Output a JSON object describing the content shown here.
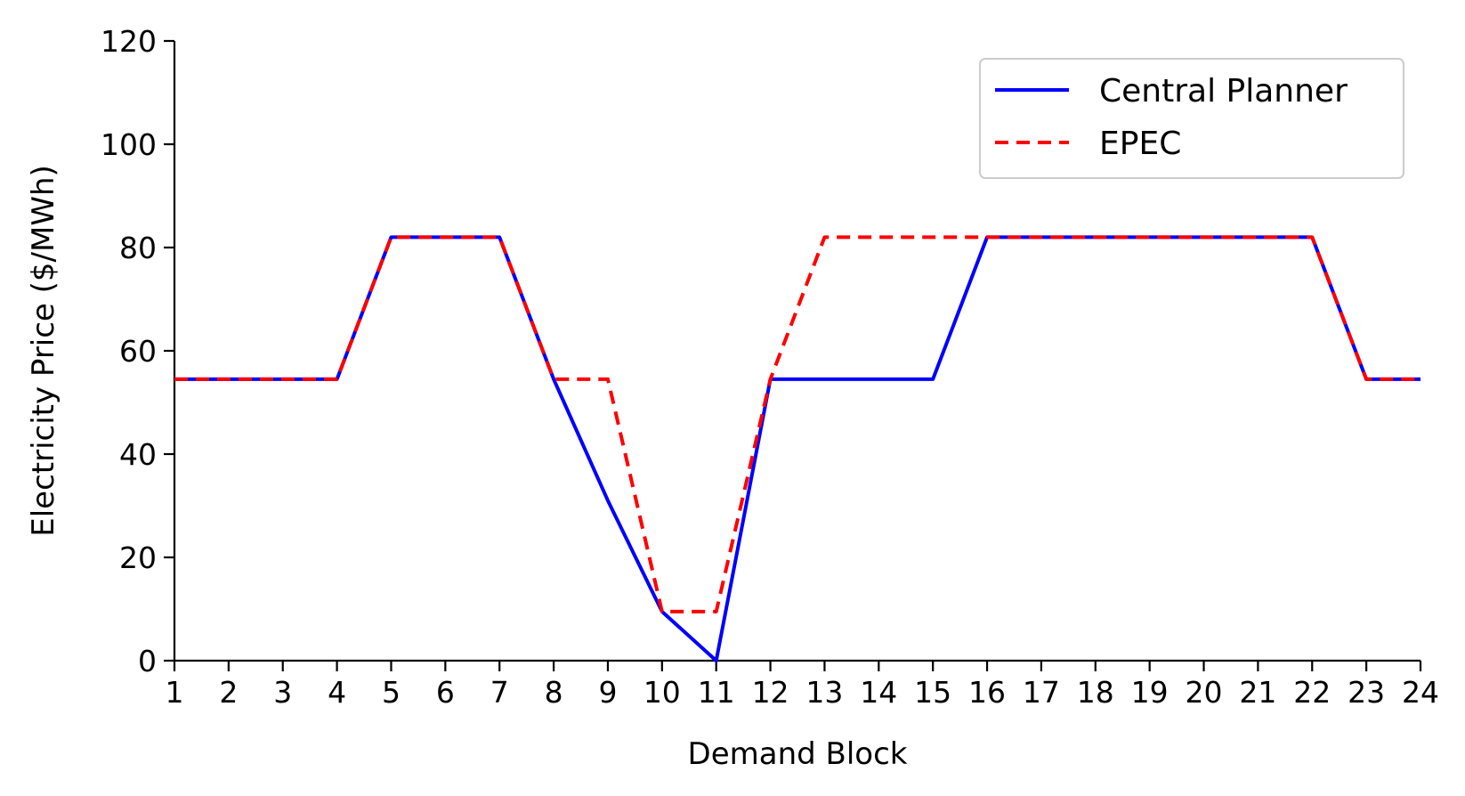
{
  "chart_data": {
    "type": "line",
    "xlabel": "Demand Block",
    "ylabel": "Electricity Price ($/MWh)",
    "x": [
      1,
      2,
      3,
      4,
      5,
      6,
      7,
      8,
      9,
      10,
      11,
      12,
      13,
      14,
      15,
      16,
      17,
      18,
      19,
      20,
      21,
      22,
      23,
      24
    ],
    "x_ticks": [
      "1",
      "2",
      "3",
      "4",
      "5",
      "6",
      "7",
      "8",
      "9",
      "10",
      "11",
      "12",
      "13",
      "14",
      "15",
      "16",
      "17",
      "18",
      "19",
      "20",
      "21",
      "22",
      "23",
      "24"
    ],
    "xlim": [
      1,
      24
    ],
    "ylim": [
      0,
      120
    ],
    "y_ticks": [
      "0",
      "20",
      "40",
      "60",
      "80",
      "100",
      "120"
    ],
    "grid": false,
    "legend_position": "top-right",
    "series": [
      {
        "name": "Central Planner",
        "color": "#0000ff",
        "style": "solid",
        "values": [
          54.5,
          54.5,
          54.5,
          54.5,
          82,
          82,
          82,
          54.5,
          31,
          9.5,
          0,
          54.5,
          54.5,
          54.5,
          54.5,
          82,
          82,
          82,
          82,
          82,
          82,
          82,
          54.5,
          54.5
        ]
      },
      {
        "name": "EPEC",
        "color": "#ff0000",
        "style": "dashed",
        "values": [
          54.5,
          54.5,
          54.5,
          54.5,
          82,
          82,
          82,
          54.5,
          54.5,
          9.5,
          9.5,
          54.5,
          82,
          82,
          82,
          82,
          82,
          82,
          82,
          82,
          82,
          82,
          54.5,
          54.5
        ]
      }
    ]
  }
}
